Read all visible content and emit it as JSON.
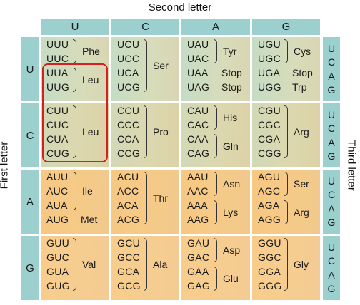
{
  "titles": {
    "second_letter": "Second letter",
    "first_letter": "First letter",
    "third_letter": "Third letter"
  },
  "second_letters": [
    "U",
    "C",
    "A",
    "G"
  ],
  "first_letters": [
    "U",
    "C",
    "A",
    "G"
  ],
  "third_letters": [
    "U",
    "C",
    "A",
    "G"
  ],
  "cells": [
    [
      {
        "codons": [
          "UUU",
          "UUC",
          "UUA",
          "UUG"
        ],
        "groups": [
          {
            "name": "Phe",
            "start": 0,
            "end": 1
          },
          {
            "name": "Leu",
            "start": 2,
            "end": 3
          }
        ]
      },
      {
        "codons": [
          "UCU",
          "UCC",
          "UCA",
          "UCG"
        ],
        "groups": [
          {
            "name": "Ser",
            "start": 0,
            "end": 3
          }
        ]
      },
      {
        "codons": [
          "UAU",
          "UAC",
          "UAA",
          "UAG"
        ],
        "groups": [
          {
            "name": "Tyr",
            "start": 0,
            "end": 1
          },
          {
            "name": "Stop",
            "start": 2,
            "end": 2
          },
          {
            "name": "Stop",
            "start": 3,
            "end": 3
          }
        ]
      },
      {
        "codons": [
          "UGU",
          "UGC",
          "UGA",
          "UGG"
        ],
        "groups": [
          {
            "name": "Cys",
            "start": 0,
            "end": 1
          },
          {
            "name": "Stop",
            "start": 2,
            "end": 2
          },
          {
            "name": "Trp",
            "start": 3,
            "end": 3
          }
        ]
      }
    ],
    [
      {
        "codons": [
          "CUU",
          "CUC",
          "CUA",
          "CUG"
        ],
        "groups": [
          {
            "name": "Leu",
            "start": 0,
            "end": 3
          }
        ]
      },
      {
        "codons": [
          "CCU",
          "CCC",
          "CCA",
          "CCG"
        ],
        "groups": [
          {
            "name": "Pro",
            "start": 0,
            "end": 3
          }
        ]
      },
      {
        "codons": [
          "CAU",
          "CAC",
          "CAA",
          "CAG"
        ],
        "groups": [
          {
            "name": "His",
            "start": 0,
            "end": 1
          },
          {
            "name": "Gln",
            "start": 2,
            "end": 3
          }
        ]
      },
      {
        "codons": [
          "CGU",
          "CGC",
          "CGA",
          "CGG"
        ],
        "groups": [
          {
            "name": "Arg",
            "start": 0,
            "end": 3
          }
        ]
      }
    ],
    [
      {
        "codons": [
          "AUU",
          "AUC",
          "AUA",
          "AUG"
        ],
        "groups": [
          {
            "name": "Ile",
            "start": 0,
            "end": 2
          },
          {
            "name": "Met",
            "start": 3,
            "end": 3
          }
        ]
      },
      {
        "codons": [
          "ACU",
          "ACC",
          "ACA",
          "ACG"
        ],
        "groups": [
          {
            "name": "Thr",
            "start": 0,
            "end": 3
          }
        ]
      },
      {
        "codons": [
          "AAU",
          "AAC",
          "AAA",
          "AAG"
        ],
        "groups": [
          {
            "name": "Asn",
            "start": 0,
            "end": 1
          },
          {
            "name": "Lys",
            "start": 2,
            "end": 3
          }
        ]
      },
      {
        "codons": [
          "AGU",
          "AGC",
          "AGA",
          "AGG"
        ],
        "groups": [
          {
            "name": "Ser",
            "start": 0,
            "end": 1
          },
          {
            "name": "Arg",
            "start": 2,
            "end": 3
          }
        ]
      }
    ],
    [
      {
        "codons": [
          "GUU",
          "GUC",
          "GUA",
          "GUG"
        ],
        "groups": [
          {
            "name": "Val",
            "start": 0,
            "end": 3
          }
        ]
      },
      {
        "codons": [
          "GCU",
          "GCC",
          "GCA",
          "GCG"
        ],
        "groups": [
          {
            "name": "Ala",
            "start": 0,
            "end": 3
          }
        ]
      },
      {
        "codons": [
          "GAU",
          "GAC",
          "GAA",
          "GAG"
        ],
        "groups": [
          {
            "name": "Asp",
            "start": 0,
            "end": 1
          },
          {
            "name": "Glu",
            "start": 2,
            "end": 3
          }
        ]
      },
      {
        "codons": [
          "GGU",
          "GGC",
          "GGA",
          "GGG"
        ],
        "groups": [
          {
            "name": "Gly",
            "start": 0,
            "end": 3
          }
        ]
      }
    ]
  ],
  "highlight": {
    "row": 0,
    "col": 0,
    "start": 2,
    "end": 3,
    "color": "#d42020"
  },
  "colors": {
    "header": "#9bd0cf",
    "row_u": "#d2dcbc",
    "row_c": "#d8d5ae",
    "row_a": "#f5c987",
    "row_g": "#f6cc90"
  }
}
